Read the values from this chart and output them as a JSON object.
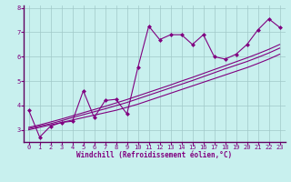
{
  "xlabel": "Windchill (Refroidissement éolien,°C)",
  "bg_color": "#c8f0ee",
  "line_color": "#800080",
  "grid_color": "#a0c8c8",
  "spine_color": "#600060",
  "x_data": [
    0,
    1,
    2,
    3,
    4,
    5,
    6,
    7,
    8,
    9,
    10,
    11,
    12,
    13,
    14,
    15,
    16,
    17,
    18,
    19,
    20,
    21,
    22,
    23
  ],
  "y_main": [
    3.8,
    2.7,
    3.15,
    3.3,
    3.35,
    4.6,
    3.5,
    4.2,
    4.25,
    3.65,
    5.55,
    7.25,
    6.7,
    6.9,
    6.9,
    6.5,
    6.9,
    6.0,
    5.9,
    6.1,
    6.5,
    7.1,
    7.55,
    7.2
  ],
  "y_trend1": [
    3.0,
    3.1,
    3.2,
    3.3,
    3.4,
    3.5,
    3.6,
    3.7,
    3.8,
    3.92,
    4.05,
    4.2,
    4.35,
    4.5,
    4.65,
    4.8,
    4.95,
    5.1,
    5.25,
    5.4,
    5.55,
    5.72,
    5.9,
    6.1
  ],
  "y_trend2": [
    3.05,
    3.15,
    3.25,
    3.37,
    3.5,
    3.62,
    3.74,
    3.86,
    3.99,
    4.12,
    4.27,
    4.42,
    4.57,
    4.72,
    4.87,
    5.02,
    5.18,
    5.34,
    5.5,
    5.65,
    5.8,
    5.97,
    6.15,
    6.35
  ],
  "y_trend3": [
    3.1,
    3.2,
    3.32,
    3.44,
    3.57,
    3.7,
    3.83,
    3.96,
    4.1,
    4.24,
    4.39,
    4.54,
    4.69,
    4.84,
    5.0,
    5.15,
    5.31,
    5.47,
    5.63,
    5.79,
    5.95,
    6.12,
    6.3,
    6.5
  ],
  "ylim": [
    2.5,
    8.1
  ],
  "xlim": [
    -0.5,
    23.5
  ],
  "yticks": [
    3,
    4,
    5,
    6,
    7,
    8
  ],
  "xticks": [
    0,
    1,
    2,
    3,
    4,
    5,
    6,
    7,
    8,
    9,
    10,
    11,
    12,
    13,
    14,
    15,
    16,
    17,
    18,
    19,
    20,
    21,
    22,
    23
  ],
  "marker": "D",
  "markersize": 2.5,
  "linewidth": 0.8,
  "tick_fontsize": 5,
  "xlabel_fontsize": 5.5
}
